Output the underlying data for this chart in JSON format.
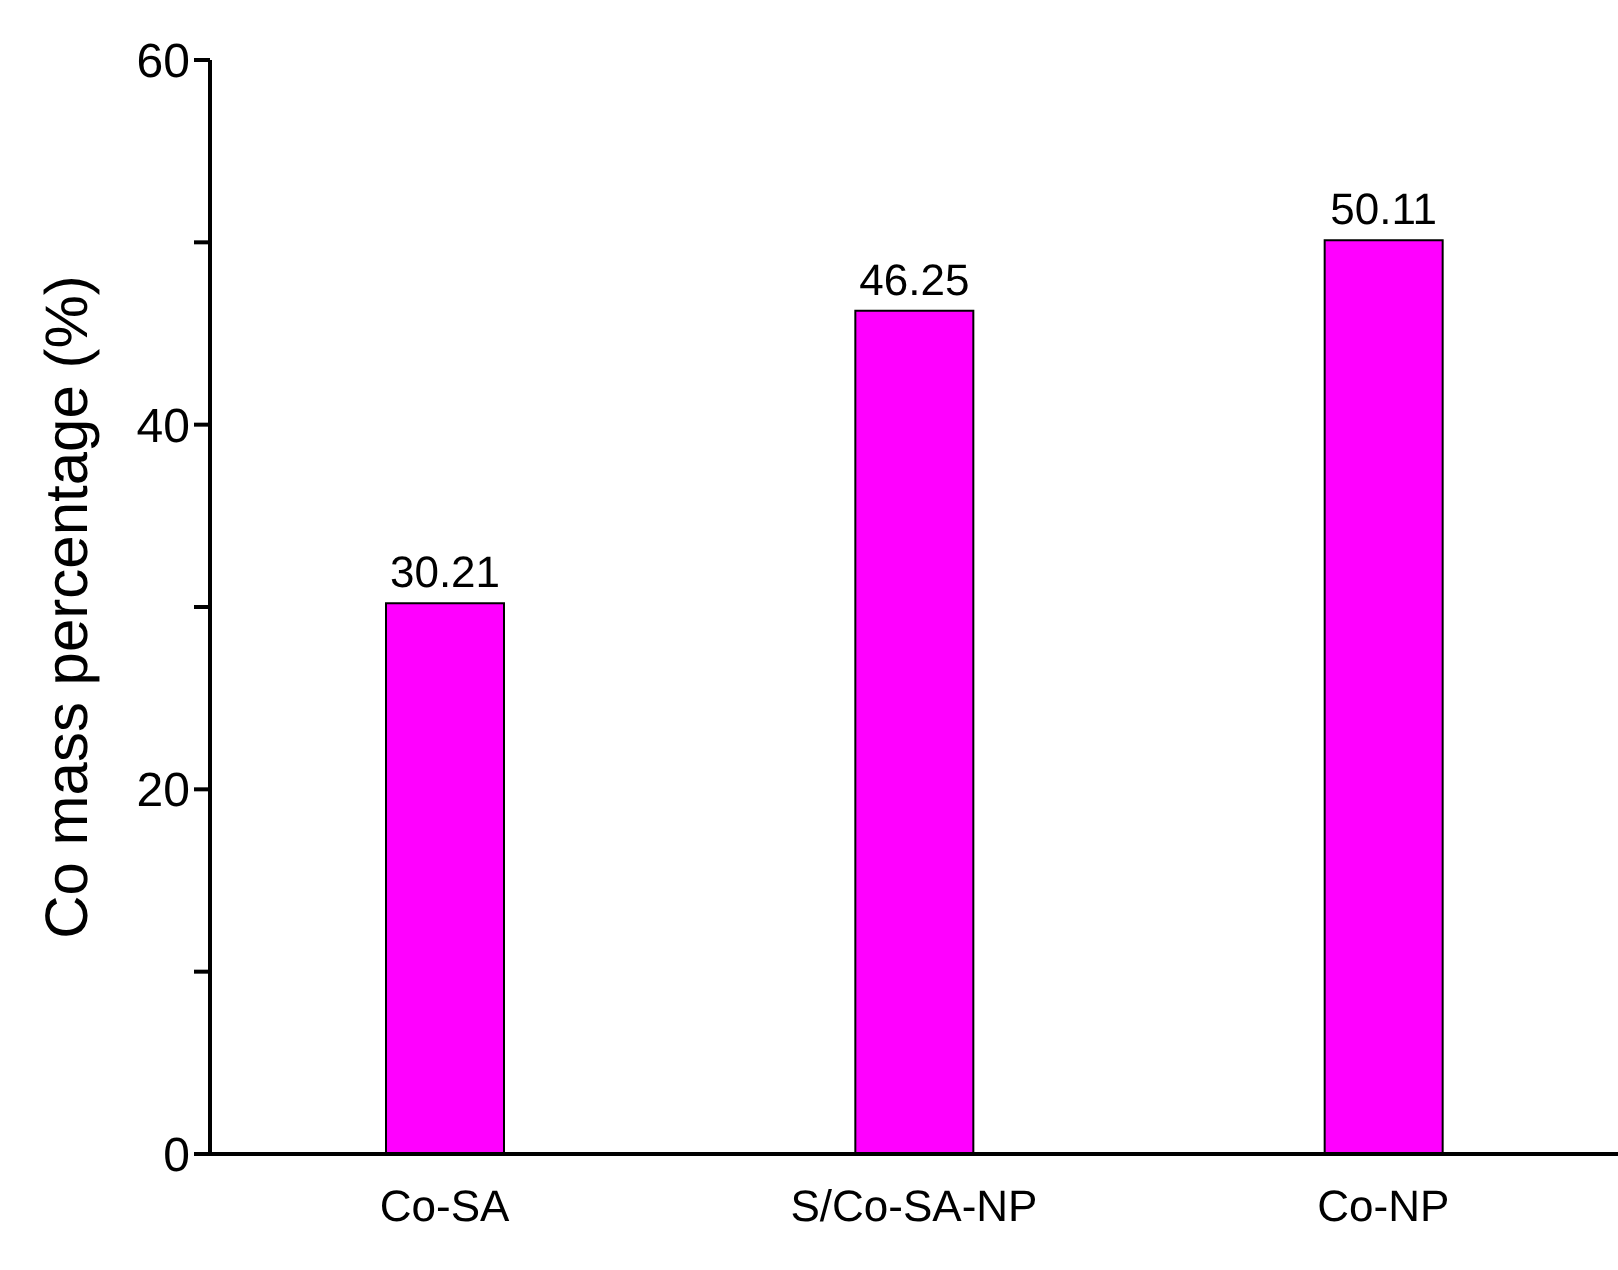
{
  "chart_data": {
    "type": "bar",
    "ylabel": "Co mass percentage (%)",
    "categories": [
      "Co-SA",
      "S/Co-SA-NP",
      "Co-NP"
    ],
    "values": [
      30.21,
      46.25,
      50.11
    ],
    "color": "#ff00ff",
    "ylim": [
      0,
      60
    ],
    "yticks": [
      0,
      {
        "value": 10,
        "label": null
      },
      20,
      {
        "value": 30,
        "label": null
      },
      40,
      {
        "value": 50,
        "label": null
      },
      60
    ],
    "data_labels": true,
    "grid": false
  }
}
